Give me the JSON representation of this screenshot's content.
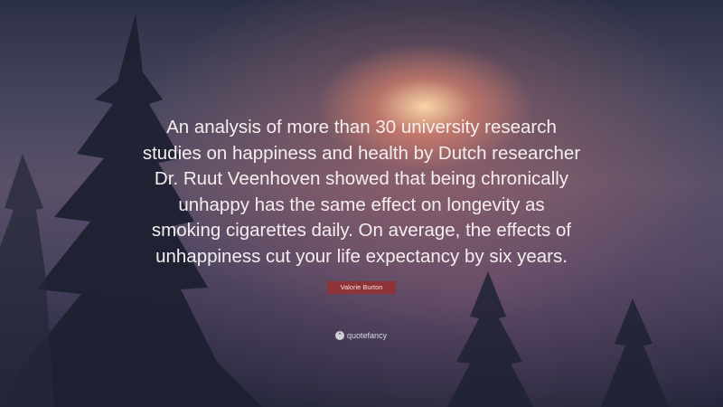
{
  "quote": {
    "lines": [
      "An analysis of more than 30 university research",
      "studies on happiness and health by Dutch researcher",
      "Dr. Ruut Veenhoven showed that being chronically",
      "unhappy has the same effect on longevity as",
      "smoking cigarettes daily. On average, the effects of",
      "unhappiness cut your life expectancy by six years."
    ]
  },
  "author": "Valorie Burton",
  "brand": {
    "name": "quotefancy",
    "icon": "quote-marks-icon"
  },
  "colors": {
    "author_badge": "#8e3438",
    "text": "#f4eeee"
  }
}
